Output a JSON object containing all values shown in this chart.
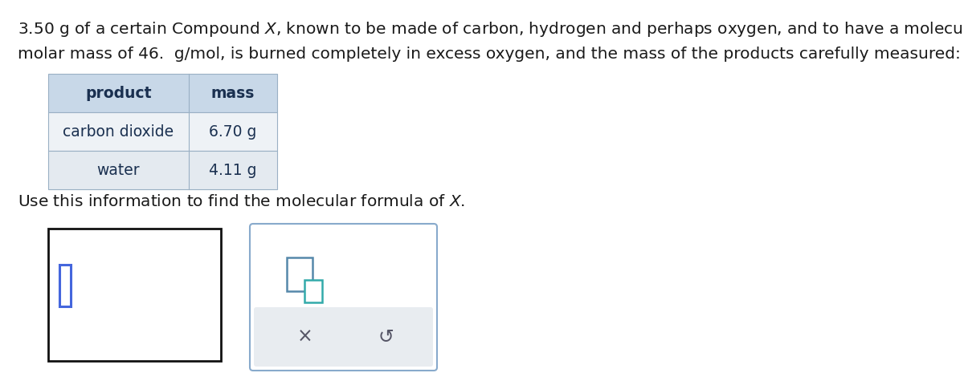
{
  "line1_plain": "3.50 g of a certain Compound  ",
  "line1_italic": "X",
  "line1_rest": ", known to be made of carbon, hydrogen and perhaps oxygen, and to have a molecular",
  "line2": "molar mass of 46.  g/mol, is burned completely in excess oxygen, and the mass of the products carefully measured:",
  "table_headers": [
    "product",
    "mass"
  ],
  "table_rows": [
    [
      "carbon dioxide",
      "6.70 g"
    ],
    [
      "water",
      "4.11 g"
    ]
  ],
  "question_plain": "Use this information to find the molecular formula of ",
  "question_italic": "X",
  "question_dot": ".",
  "bg_color": "#ffffff",
  "table_header_bg": "#c8d8e8",
  "table_row1_bg": "#eef2f6",
  "table_row2_bg": "#e4eaf0",
  "table_border_color": "#9ab0c4",
  "body_text_color": "#1a1a1a",
  "table_text_color": "#1a3050",
  "font_size_body": 14.5,
  "font_size_table": 13.5,
  "input_box_border": "#111111",
  "input_cursor_color": "#4466dd",
  "toolbar_border": "#88aacc",
  "toolbar_bg": "#e8ecf0",
  "toolbar_icon_color1": "#5588aa",
  "toolbar_icon_color2": "#33aaaa",
  "x_btn_color": "#555566",
  "undo_btn_color": "#555566"
}
